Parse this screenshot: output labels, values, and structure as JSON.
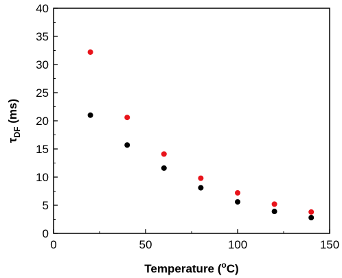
{
  "chart_data": {
    "type": "scatter",
    "title": "",
    "xlabel": {
      "main": "Temperature (",
      "superscript": "o",
      "tail": "C)"
    },
    "ylabel": {
      "symbol": "τ",
      "subscript": "DF",
      "tail": " (ms)"
    },
    "xlim": [
      0,
      150
    ],
    "ylim": [
      0,
      40
    ],
    "xticks": [
      0,
      50,
      100,
      150
    ],
    "yticks": [
      0,
      5,
      10,
      15,
      20,
      25,
      30,
      35,
      40
    ],
    "grid": false,
    "legend": "none",
    "series": [
      {
        "color": "#e8141b",
        "x": [
          20,
          40,
          60,
          80,
          100,
          120,
          140
        ],
        "y": [
          32.2,
          20.6,
          14.1,
          9.8,
          7.2,
          5.2,
          3.8
        ]
      },
      {
        "color": "#000000",
        "x": [
          20,
          40,
          60,
          80,
          100,
          120,
          140
        ],
        "y": [
          21.0,
          15.7,
          11.6,
          8.1,
          5.6,
          3.9,
          2.8
        ]
      }
    ]
  }
}
